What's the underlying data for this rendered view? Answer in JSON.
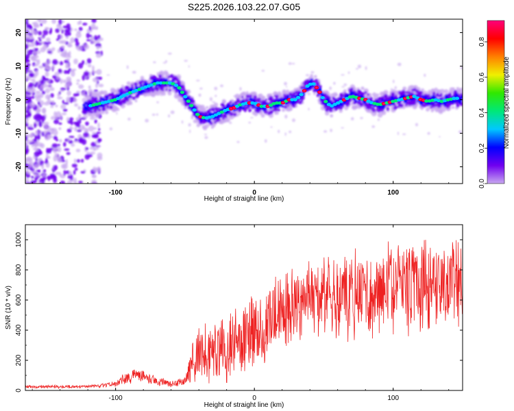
{
  "title": "S225.2026.103.22.07.G05",
  "chart_data": [
    {
      "type": "heatmap",
      "title": "S225.2026.103.22.07.G05",
      "xlabel": "Height of straight line (km)",
      "ylabel": "Frequency (Hz)",
      "xlim": [
        -165,
        150
      ],
      "ylim": [
        -25,
        24
      ],
      "xticks": [
        -100,
        0,
        100
      ],
      "yticks": [
        -20,
        -10,
        0,
        10,
        20
      ],
      "colorbar": {
        "label": "Normalized spectral amplitude",
        "range": [
          0,
          0.92
        ],
        "ticks": [
          0.0,
          0.2,
          0.4,
          0.6,
          0.8
        ],
        "tick_labels": [
          "0.0",
          "0.2",
          "0.4",
          "0.6",
          "0.8"
        ],
        "colormap": [
          "#c8a8f0",
          "#7000f0",
          "#0000ff",
          "#00c8ff",
          "#00e878",
          "#30e800",
          "#f0f000",
          "#ff8000",
          "#ff0000",
          "#ff007a"
        ]
      },
      "ridge": {
        "x": [
          -120,
          -110,
          -100,
          -90,
          -80,
          -70,
          -60,
          -55,
          -50,
          -45,
          -40,
          -35,
          -30,
          -25,
          -20,
          -15,
          -10,
          -5,
          0,
          5,
          10,
          15,
          20,
          25,
          30,
          35,
          38,
          42,
          46,
          50,
          55,
          60,
          65,
          70,
          75,
          80,
          85,
          90,
          95,
          100,
          105,
          110,
          115,
          120,
          125,
          130,
          135,
          140,
          145,
          150
        ],
        "y": [
          -2,
          -1,
          0,
          2,
          3.5,
          5,
          5,
          4,
          1,
          -2,
          -5,
          -5.5,
          -5,
          -4,
          -3,
          -2.5,
          -1.5,
          -1,
          -1,
          -2,
          -2,
          -1,
          -1,
          0,
          0,
          2,
          4,
          5,
          3,
          0,
          -2,
          -1,
          0,
          1,
          0.5,
          0,
          -1,
          -1.5,
          -1,
          -0.5,
          0,
          0.5,
          1,
          0,
          -0.5,
          0,
          -0.5,
          0,
          0.5,
          0
        ]
      }
    },
    {
      "type": "line",
      "xlabel": "Height of straight line (km)",
      "ylabel": "SNR (10 * v/v)",
      "xlim": [
        -165,
        150
      ],
      "ylim": [
        0,
        1100
      ],
      "xticks": [
        -100,
        0,
        100
      ],
      "yticks": [
        0,
        200,
        400,
        600,
        800,
        1000
      ],
      "color": "#ee2222",
      "envelope": {
        "x": [
          -165,
          -130,
          -110,
          -100,
          -95,
          -90,
          -85,
          -80,
          -70,
          -60,
          -50,
          -45,
          -40,
          -30,
          -20,
          -10,
          0,
          10,
          20,
          30,
          40,
          50,
          60,
          80,
          100,
          120,
          140,
          150
        ],
        "mean": [
          25,
          25,
          30,
          45,
          70,
          90,
          110,
          100,
          60,
          45,
          60,
          170,
          230,
          260,
          300,
          330,
          400,
          440,
          520,
          580,
          600,
          620,
          640,
          650,
          680,
          700,
          700,
          700
        ],
        "amp": [
          12,
          12,
          15,
          25,
          40,
          50,
          55,
          50,
          30,
          25,
          40,
          150,
          220,
          250,
          280,
          300,
          300,
          300,
          300,
          300,
          300,
          310,
          320,
          340,
          350,
          350,
          340,
          330
        ]
      }
    }
  ]
}
